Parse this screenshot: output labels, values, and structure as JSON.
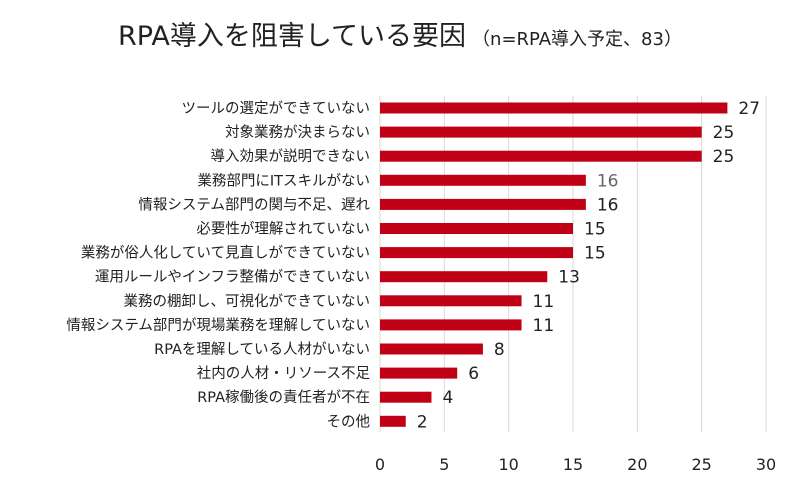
{
  "chart_data": {
    "type": "bar",
    "orientation": "horizontal",
    "title": "RPA導入を阻害している要因",
    "subtitle": "（n=RPA導入予定、83）",
    "categories": [
      "ツールの選定ができていない",
      "対象業務が決まらない",
      "導入効果が説明できない",
      "業務部門にITスキルがない",
      "情報システム部門の関与不足、遅れ",
      "必要性が理解されていない",
      "業務が俗人化していて見直しができていない",
      "運用ルールやインフラ整備ができていない",
      "業務の棚卸し、可視化ができていない",
      "情報システム部門が現場業務を理解していない",
      "RPAを理解している人材がいない",
      "社内の人材・リソース不足",
      "RPA稼働後の責任者が不在",
      "その他"
    ],
    "values": [
      27,
      25,
      25,
      16,
      16,
      15,
      15,
      13,
      11,
      11,
      8,
      6,
      4,
      2
    ],
    "xlim": [
      0,
      30
    ],
    "xticks": [
      0,
      5,
      10,
      15,
      20,
      25,
      30
    ],
    "grid": true,
    "bar_color": "#c00015"
  }
}
